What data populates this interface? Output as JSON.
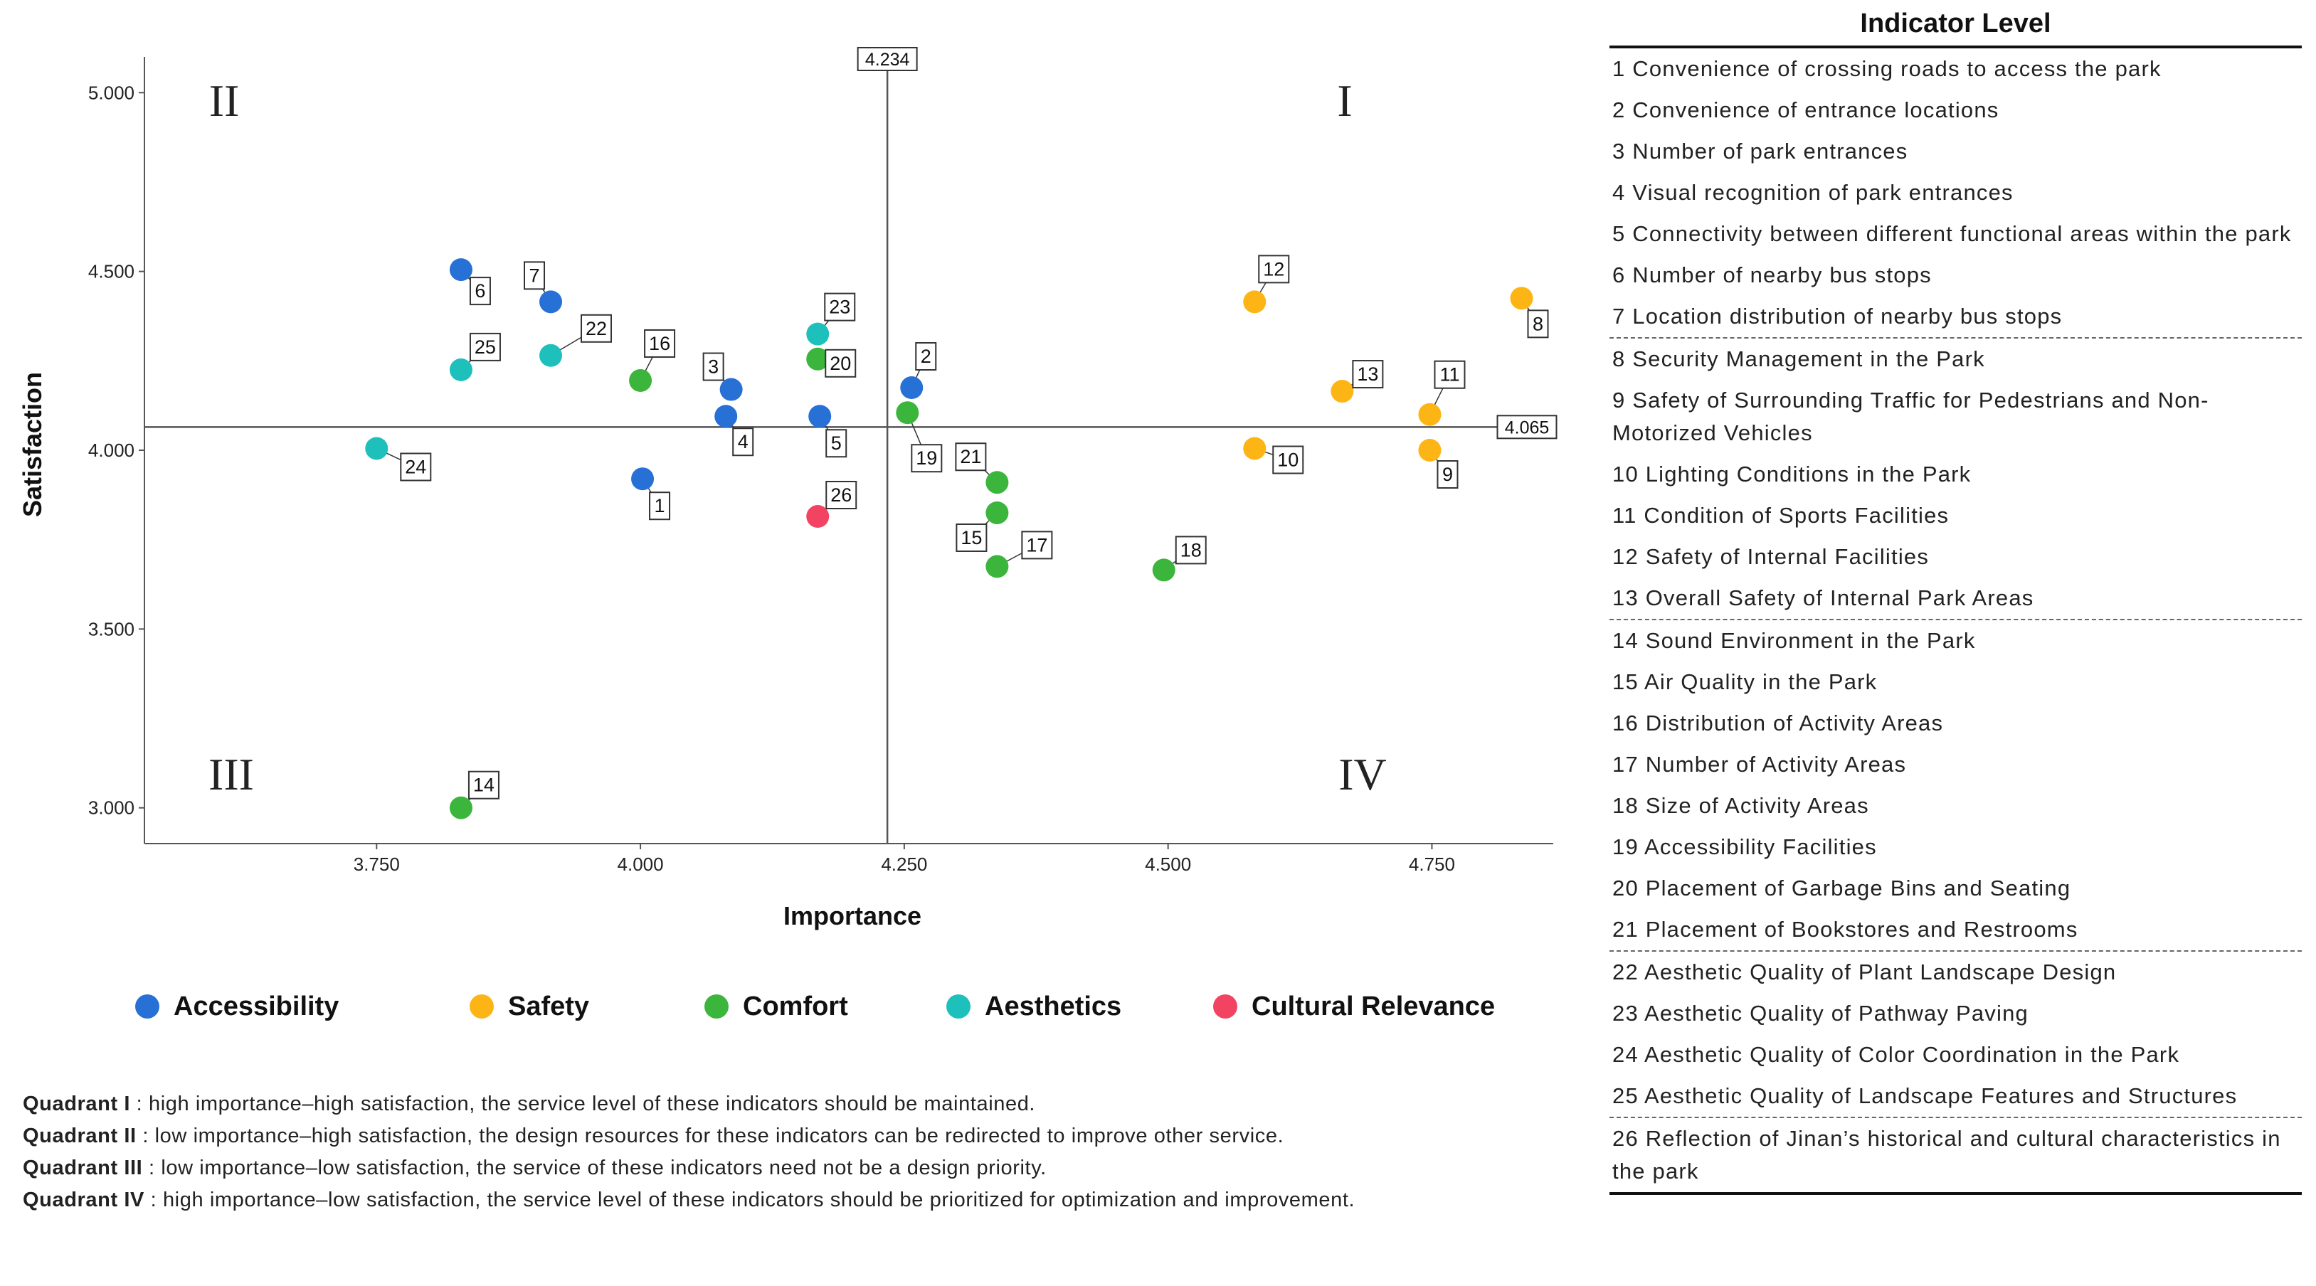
{
  "chart_data": {
    "type": "scatter",
    "xlabel": "Importance",
    "ylabel": "Satisfaction",
    "x_ticks": [
      "3.750",
      "4.000",
      "4.250",
      "4.500",
      "4.750"
    ],
    "y_ticks": [
      "3.000",
      "3.500",
      "4.000",
      "4.500",
      "5.000"
    ],
    "xlim": [
      3.53,
      4.865
    ],
    "ylim": [
      2.9,
      5.1
    ],
    "x_ref": {
      "value": 4.234,
      "label": "4.234"
    },
    "y_ref": {
      "value": 4.065,
      "label": "4.065"
    },
    "quadrant_labels": {
      "I": "I",
      "II": "II",
      "III": "III",
      "IV": "IV"
    },
    "legend_position": "bottom",
    "grid": false,
    "groups": [
      {
        "name": "Accessibility",
        "color": "#2670d6"
      },
      {
        "name": "Safety",
        "color": "#fdb515"
      },
      {
        "name": "Comfort",
        "color": "#3bb53b"
      },
      {
        "name": "Aesthetics",
        "color": "#1ec0bc"
      },
      {
        "name": "Cultural Relevance",
        "color": "#f24462"
      }
    ],
    "points": [
      {
        "id": "1",
        "group": "Accessibility",
        "x": 4.002,
        "y": 3.92
      },
      {
        "id": "2",
        "group": "Accessibility",
        "x": 4.257,
        "y": 4.175
      },
      {
        "id": "3",
        "group": "Accessibility",
        "x": 4.086,
        "y": 4.17
      },
      {
        "id": "4",
        "group": "Accessibility",
        "x": 4.081,
        "y": 4.095
      },
      {
        "id": "5",
        "group": "Accessibility",
        "x": 4.17,
        "y": 4.095
      },
      {
        "id": "6",
        "group": "Accessibility",
        "x": 3.83,
        "y": 4.505
      },
      {
        "id": "7",
        "group": "Accessibility",
        "x": 3.915,
        "y": 4.415
      },
      {
        "id": "8",
        "group": "Safety",
        "x": 4.835,
        "y": 4.425
      },
      {
        "id": "9",
        "group": "Safety",
        "x": 4.748,
        "y": 4.0
      },
      {
        "id": "10",
        "group": "Safety",
        "x": 4.582,
        "y": 4.005
      },
      {
        "id": "11",
        "group": "Safety",
        "x": 4.748,
        "y": 4.1
      },
      {
        "id": "12",
        "group": "Safety",
        "x": 4.582,
        "y": 4.415
      },
      {
        "id": "13",
        "group": "Safety",
        "x": 4.665,
        "y": 4.165
      },
      {
        "id": "14",
        "group": "Comfort",
        "x": 3.83,
        "y": 3.0
      },
      {
        "id": "15",
        "group": "Comfort",
        "x": 4.338,
        "y": 3.825
      },
      {
        "id": "16",
        "group": "Comfort",
        "x": 4.0,
        "y": 4.195
      },
      {
        "id": "17",
        "group": "Comfort",
        "x": 4.338,
        "y": 3.675
      },
      {
        "id": "18",
        "group": "Comfort",
        "x": 4.496,
        "y": 3.665
      },
      {
        "id": "19",
        "group": "Comfort",
        "x": 4.253,
        "y": 4.105
      },
      {
        "id": "20",
        "group": "Comfort",
        "x": 4.168,
        "y": 4.255
      },
      {
        "id": "21",
        "group": "Comfort",
        "x": 4.338,
        "y": 3.91
      },
      {
        "id": "22",
        "group": "Aesthetics",
        "x": 3.915,
        "y": 4.265
      },
      {
        "id": "23",
        "group": "Aesthetics",
        "x": 4.168,
        "y": 4.325
      },
      {
        "id": "24",
        "group": "Aesthetics",
        "x": 3.75,
        "y": 4.005
      },
      {
        "id": "25",
        "group": "Aesthetics",
        "x": 3.83,
        "y": 4.225
      },
      {
        "id": "26",
        "group": "Cultural Relevance",
        "x": 4.168,
        "y": 3.815
      }
    ]
  },
  "notes": [
    {
      "title": "Quadrant I",
      "text": " : high importance–high satisfaction, the service level of these indicators should be maintained."
    },
    {
      "title": "Quadrant II",
      "text": " : low importance–high satisfaction, the design resources for these indicators can be redirected to improve other service."
    },
    {
      "title": "Quadrant III",
      "text": " : low importance–low satisfaction, the service of these indicators need not be a design priority."
    },
    {
      "title": "Quadrant IV",
      "text": " : high importance–low satisfaction, the service level of these indicators should be prioritized for optimization and improvement."
    }
  ],
  "indicator_table": {
    "title": "Indicator Level",
    "rows": [
      {
        "text": "1 Convenience of crossing roads to access the park"
      },
      {
        "text": "2 Convenience of entrance locations"
      },
      {
        "text": "3 Number of park entrances"
      },
      {
        "text": "4 Visual recognition of park entrances"
      },
      {
        "text": "5 Connectivity between different functional areas within the park"
      },
      {
        "text": "6 Number of nearby bus stops"
      },
      {
        "text": "7 Location distribution of nearby bus stops",
        "group_end": true
      },
      {
        "text": "8 Security Management in the Park"
      },
      {
        "text": "9 Safety of Surrounding Traffic for Pedestrians and Non-Motorized Vehicles"
      },
      {
        "text": "10 Lighting Conditions in the Park"
      },
      {
        "text": "11 Condition of Sports Facilities"
      },
      {
        "text": "12 Safety of Internal Facilities"
      },
      {
        "text": "13 Overall Safety of Internal Park Areas",
        "group_end": true
      },
      {
        "text": "14 Sound Environment in the Park"
      },
      {
        "text": "15 Air Quality in the Park"
      },
      {
        "text": "16 Distribution of Activity Areas"
      },
      {
        "text": "17 Number of Activity Areas"
      },
      {
        "text": "18 Size of Activity Areas"
      },
      {
        "text": "19 Accessibility Facilities"
      },
      {
        "text": "20 Placement of Garbage Bins and Seating"
      },
      {
        "text": "21 Placement of Bookstores and Restrooms",
        "group_end": true
      },
      {
        "text": "22 Aesthetic Quality of Plant Landscape Design"
      },
      {
        "text": "23 Aesthetic Quality of Pathway Paving"
      },
      {
        "text": "24 Aesthetic Quality of Color Coordination in the Park"
      },
      {
        "text": "25 Aesthetic Quality of Landscape Features and Structures",
        "group_end": true
      },
      {
        "text": "26 Reflection of Jinan’s historical and cultural characteristics in the park",
        "final": true
      }
    ]
  }
}
